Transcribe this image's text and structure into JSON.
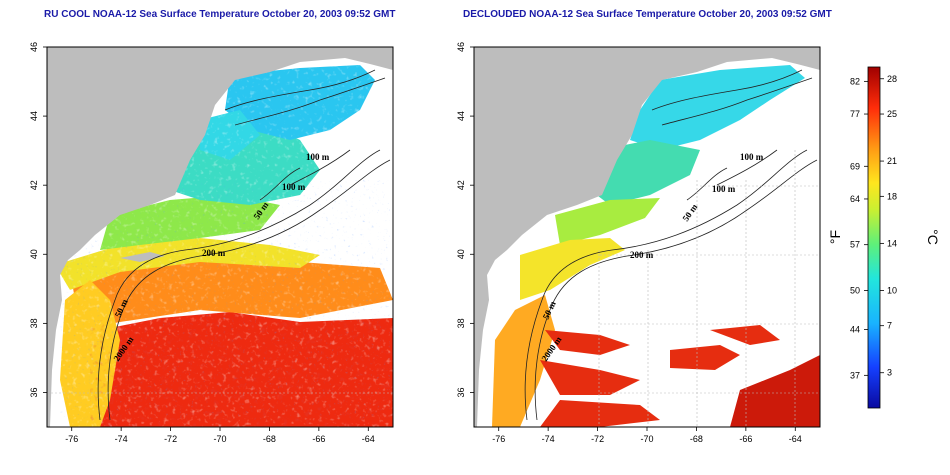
{
  "panels": [
    {
      "id": "left",
      "title": "RU COOL NOAA-12 Sea Surface Temperature October 20, 2003 09:52 GMT",
      "mode": "raw",
      "contour_labels": [
        "100 m",
        "100 m",
        "50 m",
        "200 m",
        "50 m",
        "2000 m"
      ]
    },
    {
      "id": "right",
      "title": "DECLOUDED NOAA-12 Sea Surface Temperature October 20, 2003 09:52 GMT",
      "mode": "declouded",
      "contour_labels": [
        "100 m",
        "100 m",
        "50 m",
        "200 m",
        "50 m",
        "2000 m"
      ]
    }
  ],
  "axes": {
    "lon_range": [
      -77,
      -63
    ],
    "lat_range": [
      35,
      46
    ],
    "lon_ticks": [
      -76,
      -74,
      -72,
      -70,
      -68,
      -66,
      -64
    ],
    "lat_ticks": [
      36,
      38,
      40,
      42,
      44,
      46
    ],
    "lat_tick_labels": [
      "36",
      "38",
      "40",
      "42",
      "44",
      "46"
    ],
    "lon_tick_labels": [
      "-76",
      "-74",
      "-72",
      "-70",
      "-68",
      "-66",
      "-64"
    ]
  },
  "colorbar": {
    "fahrenheit_label": "°F",
    "celsius_label": "°C",
    "fahrenheit_ticks": [
      "82",
      "77",
      "69",
      "64",
      "57",
      "50",
      "44",
      "37"
    ],
    "fahrenheit_values": [
      82,
      77,
      69,
      64,
      57,
      50,
      44,
      37
    ],
    "celsius_ticks": [
      "28",
      "25",
      "21",
      "18",
      "14",
      "10",
      "7",
      "3"
    ],
    "celsius_values": [
      28,
      25,
      21,
      18,
      14,
      10,
      7,
      3
    ],
    "range_c": [
      0,
      29
    ]
  },
  "colors": {
    "land": "#bdbdbd",
    "cloud": "#ffffff",
    "frame": "#000000",
    "grid": "#bdbdbd",
    "title": "#1a1aa8"
  }
}
